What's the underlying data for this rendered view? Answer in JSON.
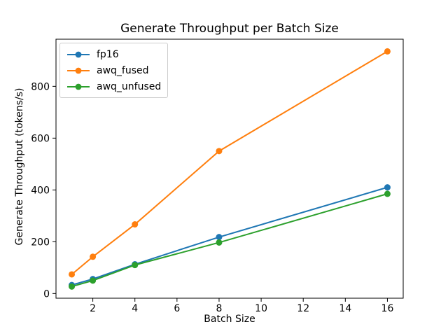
{
  "chart_data": {
    "type": "line",
    "title": "Generate Throughput per Batch Size",
    "xlabel": "Batch Size",
    "ylabel": "Generate Throughput (tokens/s)",
    "x": [
      1,
      2,
      4,
      8,
      16
    ],
    "series": [
      {
        "name": "fp16",
        "color": "#1f77b4",
        "values": [
          33,
          56,
          113,
          218,
          410
        ]
      },
      {
        "name": "awq_fused",
        "color": "#ff7f0e",
        "values": [
          74,
          142,
          267,
          550,
          935
        ]
      },
      {
        "name": "awq_unfused",
        "color": "#2ca02c",
        "values": [
          27,
          50,
          110,
          197,
          385
        ]
      }
    ],
    "xticks": [
      2,
      4,
      6,
      8,
      10,
      12,
      14,
      16
    ],
    "yticks": [
      0,
      200,
      400,
      600,
      800
    ],
    "xlim": [
      0.25,
      16.75
    ],
    "ylim": [
      -18,
      982
    ],
    "marker": "o",
    "grid": false,
    "legend_position": "upper left",
    "axis_color": "#000000",
    "background": "#ffffff",
    "legend_border_color": "#cccccc"
  }
}
